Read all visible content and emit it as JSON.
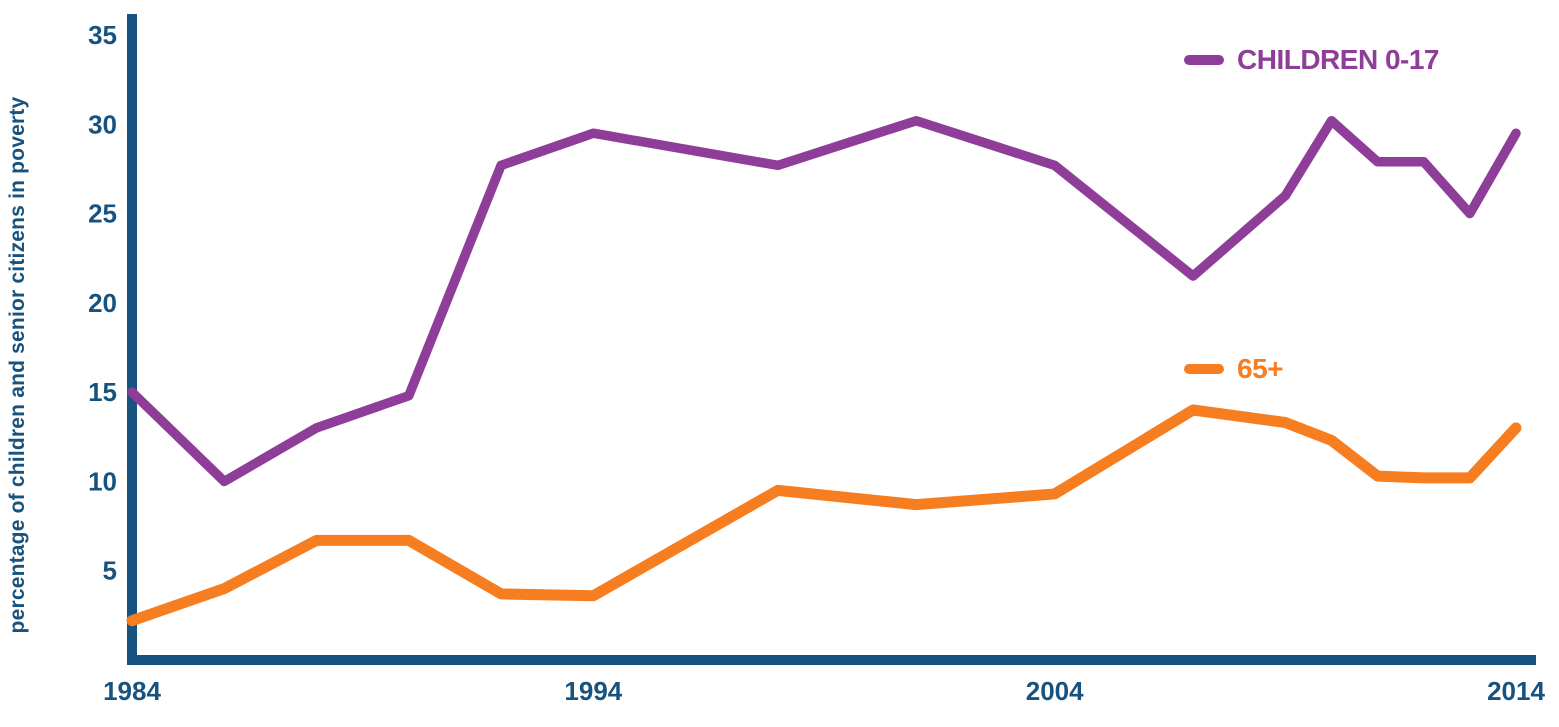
{
  "chart_data": {
    "type": "line",
    "title": "",
    "ylabel": "percentage of children and senior citizens in poverty",
    "xlabel": "",
    "x": [
      1984,
      1986,
      1988,
      1990,
      1992,
      1994,
      1998,
      2001,
      2004,
      2007,
      2009,
      2010,
      2011,
      2012,
      2013,
      2014
    ],
    "series": [
      {
        "name": "CHILDREN 0-17",
        "color": "#8e3d99",
        "values": [
          15,
          10,
          13,
          14.8,
          27.7,
          29.5,
          27.7,
          30.2,
          27.7,
          21.5,
          26,
          30.2,
          27.9,
          27.9,
          25,
          29.5
        ]
      },
      {
        "name": "65+",
        "color": "#f67e20",
        "values": [
          2.2,
          4,
          6.7,
          6.7,
          3.7,
          3.6,
          9.5,
          8.7,
          9.3,
          14,
          13.3,
          12.3,
          10.3,
          10.2,
          10.2,
          13
        ]
      }
    ],
    "xlim": [
      1984,
      2014
    ],
    "ylim": [
      0,
      35
    ],
    "yticks": [
      5,
      10,
      15,
      20,
      25,
      30,
      35
    ],
    "xticks": [
      1984,
      1994,
      2004,
      2014
    ],
    "grid": false,
    "legend_position": "inside-right",
    "axis_color": "#17537e"
  }
}
